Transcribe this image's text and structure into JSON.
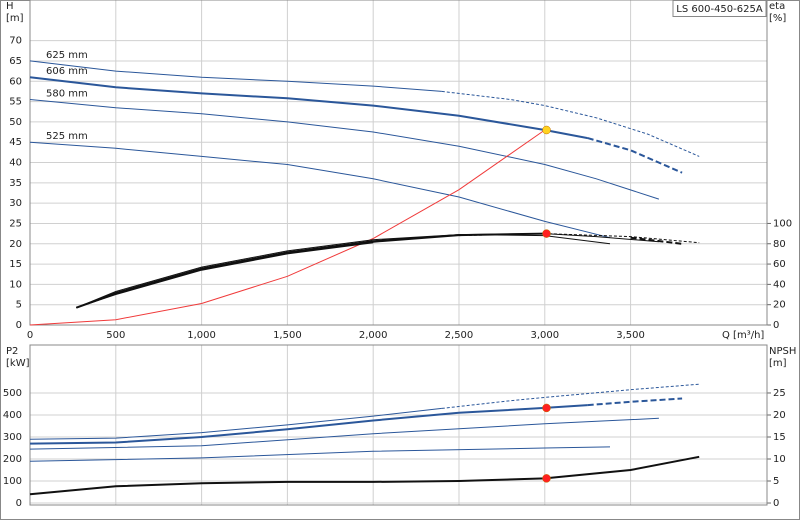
{
  "chart_data": [
    {
      "type": "line",
      "title": "LS 600-450-625A",
      "ylabel": [
        "H",
        "[m]"
      ],
      "y2label": [
        "eta",
        "[%]"
      ],
      "xlabel": "Q [m³/h]",
      "xlim": [
        0,
        4295
      ],
      "xticks": [
        0,
        500,
        {
          "value": 1000,
          "label": "1,000"
        },
        {
          "value": 1500,
          "label": "1,500"
        },
        {
          "value": 2000,
          "label": "2,000"
        },
        {
          "value": 2500,
          "label": "2,500"
        },
        {
          "value": 3000,
          "label": "3,000"
        },
        {
          "value": 3500,
          "label": "3,500"
        }
      ],
      "ylim": [
        0,
        80
      ],
      "yticks": [
        0,
        5,
        10,
        15,
        20,
        25,
        30,
        35,
        40,
        45,
        50,
        55,
        60,
        65,
        70
      ],
      "y2lim": [
        0,
        320
      ],
      "y2ticks": [
        0,
        20,
        40,
        60,
        80,
        100
      ],
      "grid": true,
      "series": [
        {
          "name": "625 mm",
          "color": "#2b579a",
          "width": 1,
          "x": [
            0,
            500,
            1000,
            1500,
            2000,
            2400,
            2800,
            3000,
            3300,
            3600,
            3900
          ],
          "values": [
            65,
            62.5,
            61,
            60,
            58.8,
            57.5,
            55.5,
            54,
            51,
            47,
            41.5
          ],
          "dashed_after": 2400
        },
        {
          "name": "606 mm",
          "color": "#2b579a",
          "width": 2,
          "x": [
            0,
            500,
            1000,
            1500,
            2000,
            2500,
            3000,
            3250,
            3500,
            3800
          ],
          "values": [
            61,
            58.5,
            57,
            55.8,
            54,
            51.5,
            48,
            46,
            43,
            37.5
          ],
          "dashed_after": 3250
        },
        {
          "name": "580 mm",
          "color": "#2b579a",
          "width": 1,
          "x": [
            0,
            500,
            1000,
            1500,
            2000,
            2500,
            3000,
            3300,
            3665
          ],
          "values": [
            55.5,
            53.5,
            52,
            50,
            47.5,
            44,
            39.5,
            36,
            31
          ]
        },
        {
          "name": "525 mm",
          "color": "#2b579a",
          "width": 1,
          "x": [
            0,
            500,
            1000,
            1500,
            2000,
            2500,
            3000,
            3380
          ],
          "values": [
            45,
            43.5,
            41.5,
            39.5,
            36,
            31.5,
            25.5,
            21.5
          ]
        },
        {
          "color": "#f03a3a",
          "width": 1,
          "x": [
            0,
            500,
            1000,
            1500,
            2000,
            2500,
            3000
          ],
          "values": [
            0,
            1.3,
            5.3,
            12,
            21.3,
            33.3,
            48
          ]
        },
        {
          "color": "#111111",
          "width": 1,
          "axis": "y2",
          "x": [
            270,
            500,
            1000,
            1500,
            2000,
            2500,
            3000,
            3500,
            3900
          ],
          "values": [
            17,
            30,
            54,
            70,
            81,
            88,
            90,
            87,
            81
          ],
          "dashed_after": 2400
        },
        {
          "color": "#111111",
          "width": 2,
          "axis": "y2",
          "x": [
            270,
            500,
            1000,
            1500,
            2000,
            2500,
            3000,
            3500,
            3800
          ],
          "values": [
            17,
            31,
            55,
            71,
            82,
            88.5,
            90,
            86,
            80
          ],
          "dashed_after": 3250
        },
        {
          "color": "#111111",
          "width": 1,
          "axis": "y2",
          "x": [
            270,
            500,
            1000,
            1500,
            2000,
            2500,
            3000,
            3300,
            3665
          ],
          "values": [
            17,
            32,
            56,
            72,
            83,
            89,
            90,
            87,
            82
          ]
        },
        {
          "color": "#111111",
          "width": 1,
          "axis": "y2",
          "x": [
            270,
            500,
            1000,
            1500,
            2000,
            2500,
            3000,
            3380
          ],
          "values": [
            17,
            33,
            57,
            73,
            84,
            89,
            88,
            80
          ]
        }
      ],
      "markers": [
        {
          "x": 3010,
          "y": 48,
          "color": "#ffd21f"
        },
        {
          "x": 3010,
          "y": 90,
          "axis": "y2",
          "color": "#ff2020"
        }
      ]
    },
    {
      "type": "line",
      "ylabel": [
        "P2",
        "[kW]"
      ],
      "y2label": [
        "NPSH",
        "[m]"
      ],
      "xlim": [
        0,
        4295
      ],
      "ylim": [
        -9,
        718
      ],
      "yticks": [
        0,
        100,
        200,
        300,
        400,
        500
      ],
      "y2lim": [
        -0.45,
        35.9
      ],
      "y2ticks": [
        0,
        5,
        10,
        15,
        20,
        25
      ],
      "grid": true,
      "series": [
        {
          "color": "#2b579a",
          "width": 1,
          "x": [
            0,
            500,
            1000,
            1500,
            2000,
            2400,
            2800,
            3000,
            3500,
            3900
          ],
          "values": [
            290,
            295,
            320,
            355,
            395,
            430,
            465,
            480,
            515,
            540
          ],
          "dashed_after": 2400
        },
        {
          "color": "#2b579a",
          "width": 2,
          "x": [
            0,
            500,
            1000,
            1500,
            2000,
            2500,
            3000,
            3250,
            3500,
            3800
          ],
          "values": [
            270,
            275,
            300,
            335,
            375,
            410,
            432,
            445,
            460,
            475
          ],
          "dashed_after": 3250
        },
        {
          "color": "#2b579a",
          "width": 1,
          "x": [
            0,
            1000,
            2000,
            3000,
            3665
          ],
          "values": [
            245,
            260,
            315,
            360,
            385
          ]
        },
        {
          "color": "#2b579a",
          "width": 1,
          "x": [
            0,
            1000,
            2000,
            3000,
            3380
          ],
          "values": [
            190,
            205,
            235,
            250,
            255
          ]
        },
        {
          "color": "#111111",
          "width": 2,
          "axis": "y2",
          "x": [
            0,
            500,
            1000,
            1500,
            2000,
            2500,
            3000,
            3500,
            3900
          ],
          "values": [
            2,
            3.8,
            4.5,
            4.8,
            4.8,
            5,
            5.6,
            7.5,
            10.5
          ]
        }
      ],
      "markers": [
        {
          "x": 3010,
          "y": 432,
          "color": "#ff2020"
        },
        {
          "x": 3010,
          "y": 5.6,
          "axis": "y2",
          "color": "#ff2020"
        }
      ]
    }
  ]
}
